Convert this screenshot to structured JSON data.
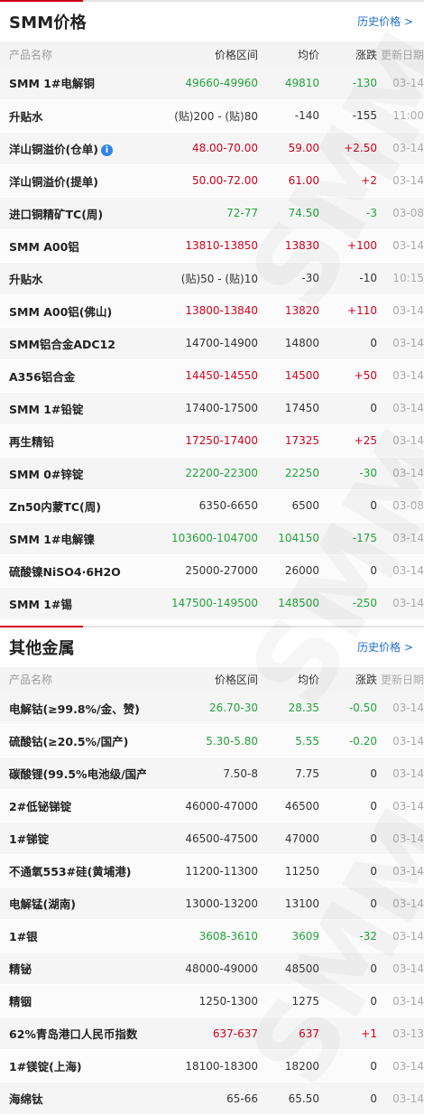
{
  "smm": {
    "title": "SMM价格",
    "history_link": "历史价格 >",
    "headers": [
      "产品名称",
      "价格区间",
      "均价",
      "涨跌",
      "更新日期"
    ],
    "rows": [
      {
        "name": "SMM 1#电解铜",
        "range": "49660-49960",
        "avg": "49810",
        "change": "-130",
        "date": "03-14",
        "trend": "down"
      },
      {
        "name": "升贴水",
        "range": "(贴)200 - (贴)80",
        "avg": "-140",
        "change": "-155",
        "date": "11:00",
        "trend": "flat"
      },
      {
        "name": "洋山铜溢价(仓单)",
        "range": "48.00-70.00",
        "avg": "59.00",
        "change": "+2.50",
        "date": "03-14",
        "trend": "up",
        "info": "i"
      },
      {
        "name": "洋山铜溢价(提单)",
        "range": "50.00-72.00",
        "avg": "61.00",
        "change": "+2",
        "date": "03-14",
        "trend": "up"
      },
      {
        "name": "进口铜精矿TC(周)",
        "range": "72-77",
        "avg": "74.50",
        "change": "-3",
        "date": "03-08",
        "trend": "down"
      },
      {
        "name": "SMM A00铝",
        "range": "13810-13850",
        "avg": "13830",
        "change": "+100",
        "date": "03-14",
        "trend": "up"
      },
      {
        "name": "升贴水",
        "range": "(贴)50 - (贴)10",
        "avg": "-30",
        "change": "-10",
        "date": "10:15",
        "trend": "flat"
      },
      {
        "name": "SMM A00铝(佛山)",
        "range": "13800-13840",
        "avg": "13820",
        "change": "+110",
        "date": "03-14",
        "trend": "up"
      },
      {
        "name": "SMM铝合金ADC12",
        "range": "14700-14900",
        "avg": "14800",
        "change": "0",
        "date": "03-14",
        "trend": "flat"
      },
      {
        "name": "A356铝合金",
        "range": "14450-14550",
        "avg": "14500",
        "change": "+50",
        "date": "03-14",
        "trend": "up"
      },
      {
        "name": "SMM 1#铅锭",
        "range": "17400-17500",
        "avg": "17450",
        "change": "0",
        "date": "03-14",
        "trend": "flat"
      },
      {
        "name": "再生精铅",
        "range": "17250-17400",
        "avg": "17325",
        "change": "+25",
        "date": "03-14",
        "trend": "up"
      },
      {
        "name": "SMM 0#锌锭",
        "range": "22200-22300",
        "avg": "22250",
        "change": "-30",
        "date": "03-14",
        "trend": "down"
      },
      {
        "name": "Zn50内蒙TC(周)",
        "range": "6350-6650",
        "avg": "6500",
        "change": "0",
        "date": "03-08",
        "trend": "flat"
      },
      {
        "name": "SMM 1#电解镍",
        "range": "103600-104700",
        "avg": "104150",
        "change": "-175",
        "date": "03-14",
        "trend": "down"
      },
      {
        "name": "硫酸镍NiSO4·6H2O",
        "range": "25000-27000",
        "avg": "26000",
        "change": "0",
        "date": "03-14",
        "trend": "flat"
      },
      {
        "name": "SMM 1#锡",
        "range": "147500-149500",
        "avg": "148500",
        "change": "-250",
        "date": "03-14",
        "trend": "down"
      }
    ]
  },
  "other": {
    "title": "其他金属",
    "history_link": "历史价格 >",
    "headers": [
      "产品名称",
      "价格区间",
      "均价",
      "涨跌",
      "更新日期"
    ],
    "rows": [
      {
        "name": "电解钴(≥99.8%/金、赞)",
        "range": "26.70-30",
        "avg": "28.35",
        "change": "-0.50",
        "date": "03-14",
        "trend": "down"
      },
      {
        "name": "硫酸钴(≥20.5%/国产)",
        "range": "5.30-5.80",
        "avg": "5.55",
        "change": "-0.20",
        "date": "03-14",
        "trend": "down"
      },
      {
        "name": "碳酸锂(99.5%电池级/国产)",
        "range": "7.50-8",
        "avg": "7.75",
        "change": "0",
        "date": "03-14",
        "trend": "flat"
      },
      {
        "name": "2#低铋锑锭",
        "range": "46000-47000",
        "avg": "46500",
        "change": "0",
        "date": "03-14",
        "trend": "flat"
      },
      {
        "name": "1#锑锭",
        "range": "46500-47500",
        "avg": "47000",
        "change": "0",
        "date": "03-14",
        "trend": "flat"
      },
      {
        "name": "不通氧553#硅(黄埔港)",
        "range": "11200-11300",
        "avg": "11250",
        "change": "0",
        "date": "03-14",
        "trend": "flat"
      },
      {
        "name": "电解锰(湖南)",
        "range": "13000-13200",
        "avg": "13100",
        "change": "0",
        "date": "03-14",
        "trend": "flat"
      },
      {
        "name": "1#银",
        "range": "3608-3610",
        "avg": "3609",
        "change": "-32",
        "date": "03-14",
        "trend": "down"
      },
      {
        "name": "精铋",
        "range": "48000-49000",
        "avg": "48500",
        "change": "0",
        "date": "03-14",
        "trend": "flat"
      },
      {
        "name": "精铟",
        "range": "1250-1300",
        "avg": "1275",
        "change": "0",
        "date": "03-14",
        "trend": "flat"
      },
      {
        "name": "62%青岛港口人民币指数",
        "range": "637-637",
        "avg": "637",
        "change": "+1",
        "date": "03-13",
        "trend": "up"
      },
      {
        "name": "1#镁锭(上海)",
        "range": "18100-18300",
        "avg": "18200",
        "change": "0",
        "date": "03-14",
        "trend": "flat"
      },
      {
        "name": "海绵钛",
        "range": "65-66",
        "avg": "65.50",
        "change": "0",
        "date": "03-14",
        "trend": "flat"
      }
    ]
  },
  "colors": {
    "up": "#d0021b",
    "down": "#22a33b",
    "link": "#1f6fd0",
    "accent": "#d0021b"
  },
  "watermark": "SMM"
}
